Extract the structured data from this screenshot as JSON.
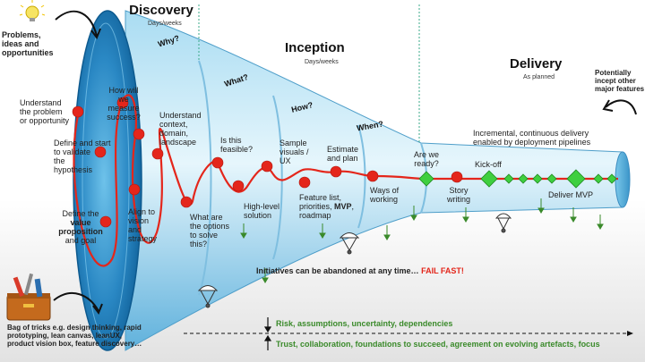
{
  "phases": {
    "discovery": {
      "title": "Discovery",
      "sub": "Days/weeks"
    },
    "inception": {
      "title": "Inception",
      "sub": "Days/weeks"
    },
    "delivery": {
      "title": "Delivery",
      "sub": "As planned"
    }
  },
  "questions": {
    "why": "Why?",
    "what": "What?",
    "how": "How?",
    "when": "When?"
  },
  "left_top": "Problems,\nideas and\nopportunities",
  "right_top": "Potentially\nincept other\nmajor features",
  "labels": {
    "understand_problem": "Understand\nthe problem\nor opportunity",
    "define_validate": "Define and start\nto validate\nthe\nhypothesis",
    "define_value_pre": "Define the",
    "define_value_bold": "value\nproposition",
    "define_value_post": "and goal",
    "how_measure": "How will\nwe\nmeasure\nsuccess?",
    "align_vision": "Align to\nvision\nand\nstrategy",
    "understand_context": "Understand\ncontext,\ndomain,\nlandscape",
    "options": "What are\nthe options\nto solve\nthis?",
    "feasible": "Is this\nfeasible?",
    "high_level": "High-level\nsolution",
    "sample_visuals": "Sample\nvisuals /\nUX",
    "feature_list_pre": "Feature list,\npriorities,",
    "feature_list_mvp": "MVP",
    "feature_list_post": "roadmap",
    "estimate_plan": "Estimate\nand plan",
    "ways_working": "Ways of\nworking",
    "are_ready": "Are we\nready?",
    "story_writing": "Story\nwriting",
    "kick_off": "Kick-off",
    "deliver_mvp": "Deliver MVP",
    "incremental": "Incremental, continuous delivery\nenabled by deployment pipelines"
  },
  "abandon": {
    "text": "Initiatives can be abandoned at any time…",
    "highlight": "FAIL FAST!"
  },
  "bag_of_tricks": "Bag of tricks e.g. design thinking, rapid\nprototyping, lean canvas, leanUX,\nproduct vision box, feature discovery…",
  "risk_line": "Risk, assumptions, uncertainty, dependencies",
  "trust_line": "Trust, collaboration, foundations to succeed, agreement on evolving artefacts, focus",
  "colors": {
    "funnel_dark": "#1a6fa8",
    "funnel_light": "#c9ebf8",
    "red_dot": "#e4261b",
    "green_diamond": "#3fcf3f",
    "green_text": "#3a8a2a",
    "divider": "#3aa889"
  },
  "icons": [
    "lightbulb-icon",
    "toolbox-icon",
    "parachute-icon",
    "curved-arrow-icon"
  ]
}
